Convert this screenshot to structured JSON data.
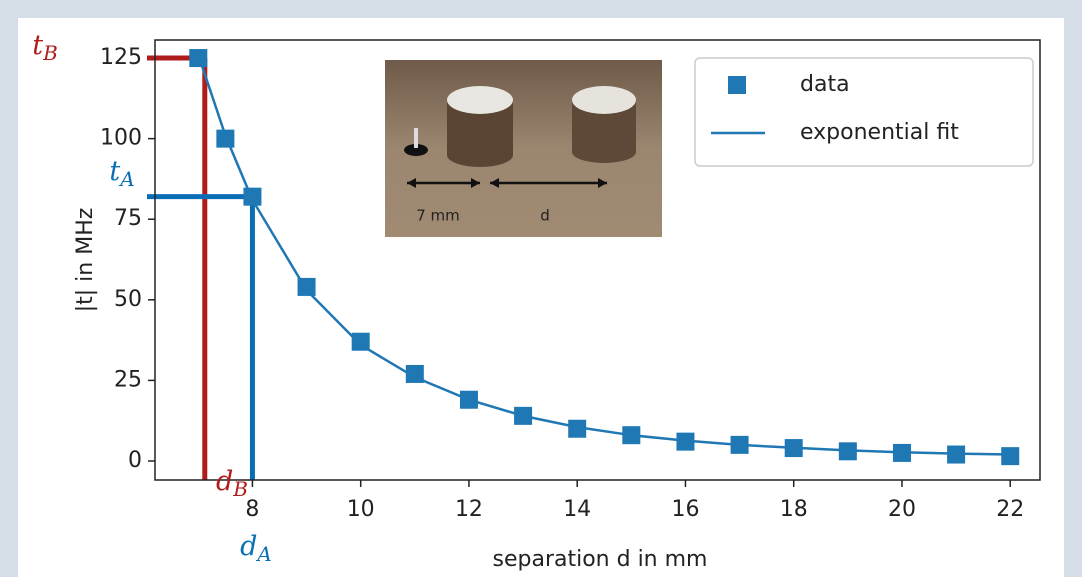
{
  "chart_data": {
    "type": "scatter",
    "xlabel": "separation d in mm",
    "ylabel": "|t| in MHz",
    "xlim": [
      6.2,
      22.55
    ],
    "ylim": [
      -5.9,
      130.6
    ],
    "xticks": [
      8,
      10,
      12,
      14,
      16,
      18,
      20,
      22
    ],
    "yticks": [
      0,
      25,
      50,
      75,
      100,
      125
    ],
    "grid": false,
    "legend": "upper right",
    "x": [
      7,
      7.5,
      8,
      9,
      10,
      11,
      12,
      13,
      14,
      15,
      16,
      17,
      18,
      19,
      20,
      21,
      22
    ],
    "series": [
      {
        "name": "data",
        "color": "#1f77b4",
        "style": "markers",
        "values": [
          125,
          100,
          82,
          54,
          37,
          27,
          19,
          14,
          10,
          8,
          6,
          5,
          4,
          3,
          2.5,
          2,
          1.5
        ]
      },
      {
        "name": "exponential fit",
        "color": "#1f77b4",
        "style": "line",
        "values": [
          126,
          101,
          81,
          53,
          36,
          26,
          19,
          14,
          10.5,
          8,
          6.3,
          5,
          4.1,
          3.3,
          2.7,
          2.3,
          2
        ]
      }
    ],
    "annotations": [
      {
        "label": "t",
        "subscript": "B",
        "axis_label": "d",
        "axis_subscript": "B",
        "color": "#b01c1c",
        "x": 7.12,
        "y": 125
      },
      {
        "label": "t",
        "subscript": "A",
        "axis_label": "d",
        "axis_subscript": "A",
        "color": "#0a6eb4",
        "x": 8,
        "y": 82
      }
    ],
    "inset": {
      "labels": [
        "7 mm",
        "d"
      ]
    }
  }
}
